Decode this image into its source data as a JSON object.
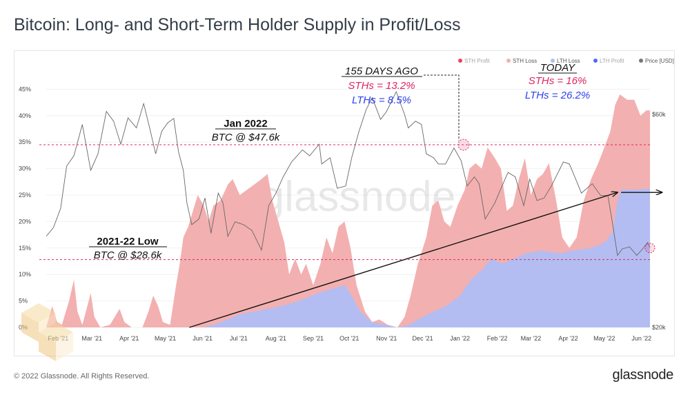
{
  "title": "Bitcoin: Long- and Short-Term Holder Supply in Profit/Loss",
  "footer": {
    "copyright": "© 2022 Glassnode. All Rights Reserved.",
    "brand": "glassnode"
  },
  "watermark": "glassnode",
  "colors": {
    "sth_profit": "#e8485a",
    "sth_loss": "#f3b0b0",
    "lth_loss": "#b3bdf2",
    "lth_profit": "#4a6cf7",
    "price": "#555555",
    "ref_line": "#e0245e",
    "anno_pink": "#e0245e",
    "anno_blue": "#2b3ff0"
  },
  "chart_data": {
    "type": "area",
    "x_range": [
      "2021-01-22",
      "2022-06-08"
    ],
    "x_ticks": [
      "Feb '21",
      "Mar '21",
      "Apr '21",
      "May '21",
      "Jun '21",
      "Jul '21",
      "Aug '21",
      "Sep '21",
      "Oct '21",
      "Nov '21",
      "Dec '21",
      "Jan '22",
      "Feb '22",
      "Mar '22",
      "Apr '22",
      "May '22",
      "Jun '22"
    ],
    "y_left": {
      "ticks": [
        "0%",
        "5%",
        "10%",
        "15%",
        "20%",
        "25%",
        "30%",
        "35%",
        "40%",
        "45%"
      ],
      "range": [
        0,
        47
      ]
    },
    "y_right": {
      "ticks": [
        "$20k",
        "$60k"
      ],
      "scale": "log"
    },
    "legend": {
      "position": "top-right",
      "items": [
        {
          "name": "STH Profit",
          "color": "#e8485a",
          "active": false
        },
        {
          "name": "STH Loss",
          "color": "#f3b0b0",
          "active": true
        },
        {
          "name": "LTH Loss",
          "color": "#b3bdf2",
          "active": true
        },
        {
          "name": "LTH Profit",
          "color": "#4a6cf7",
          "active": false
        },
        {
          "name": "Price [USD]",
          "color": "#777777",
          "active": true
        }
      ]
    },
    "series": [
      {
        "name": "STH Loss",
        "unit": "%",
        "points": [
          [
            "2021-01-22",
            0
          ],
          [
            "2021-01-27",
            4
          ],
          [
            "2021-01-31",
            1
          ],
          [
            "2021-02-04",
            0.5
          ],
          [
            "2021-02-10",
            5
          ],
          [
            "2021-02-14",
            9
          ],
          [
            "2021-02-17",
            3
          ],
          [
            "2021-02-21",
            0.5
          ],
          [
            "2021-02-24",
            3
          ],
          [
            "2021-02-28",
            6.5
          ],
          [
            "2021-03-03",
            2
          ],
          [
            "2021-03-08",
            0
          ],
          [
            "2021-03-16",
            0.5
          ],
          [
            "2021-03-20",
            2
          ],
          [
            "2021-03-24",
            3.5
          ],
          [
            "2021-03-28",
            1
          ],
          [
            "2021-04-03",
            0
          ],
          [
            "2021-04-12",
            0
          ],
          [
            "2021-04-17",
            3
          ],
          [
            "2021-04-21",
            6
          ],
          [
            "2021-04-25",
            4
          ],
          [
            "2021-04-29",
            1
          ],
          [
            "2021-05-05",
            0.5
          ],
          [
            "2021-05-10",
            8
          ],
          [
            "2021-05-13",
            12
          ],
          [
            "2021-05-16",
            17
          ],
          [
            "2021-05-20",
            19
          ],
          [
            "2021-05-24",
            22
          ],
          [
            "2021-05-28",
            25
          ],
          [
            "2021-06-02",
            23
          ],
          [
            "2021-06-06",
            20
          ],
          [
            "2021-06-10",
            23
          ],
          [
            "2021-06-16",
            24
          ],
          [
            "2021-06-22",
            27
          ],
          [
            "2021-06-26",
            28
          ],
          [
            "2021-07-02",
            25
          ],
          [
            "2021-07-08",
            26
          ],
          [
            "2021-07-14",
            27
          ],
          [
            "2021-07-20",
            28
          ],
          [
            "2021-07-25",
            29
          ],
          [
            "2021-07-29",
            24
          ],
          [
            "2021-08-03",
            20
          ],
          [
            "2021-08-08",
            16
          ],
          [
            "2021-08-12",
            10
          ],
          [
            "2021-08-17",
            13
          ],
          [
            "2021-08-22",
            10
          ],
          [
            "2021-08-26",
            12
          ],
          [
            "2021-09-01",
            8
          ],
          [
            "2021-09-07",
            12
          ],
          [
            "2021-09-12",
            17
          ],
          [
            "2021-09-17",
            14
          ],
          [
            "2021-09-22",
            19
          ],
          [
            "2021-09-27",
            20
          ],
          [
            "2021-10-02",
            15
          ],
          [
            "2021-10-07",
            8
          ],
          [
            "2021-10-14",
            3
          ],
          [
            "2021-10-20",
            1
          ],
          [
            "2021-10-26",
            1.5
          ],
          [
            "2021-11-02",
            0.5
          ],
          [
            "2021-11-10",
            0
          ],
          [
            "2021-11-16",
            2
          ],
          [
            "2021-11-21",
            6
          ],
          [
            "2021-11-27",
            12
          ],
          [
            "2021-12-04",
            17
          ],
          [
            "2021-12-09",
            23
          ],
          [
            "2021-12-14",
            24
          ],
          [
            "2021-12-19",
            20
          ],
          [
            "2021-12-24",
            19
          ],
          [
            "2021-12-30",
            23
          ],
          [
            "2022-01-05",
            26
          ],
          [
            "2022-01-09",
            30
          ],
          [
            "2022-01-14",
            31
          ],
          [
            "2022-01-19",
            30
          ],
          [
            "2022-01-24",
            34
          ],
          [
            "2022-01-30",
            32
          ],
          [
            "2022-02-04",
            30
          ],
          [
            "2022-02-09",
            22
          ],
          [
            "2022-02-14",
            23
          ],
          [
            "2022-02-19",
            28
          ],
          [
            "2022-02-24",
            32
          ],
          [
            "2022-03-01",
            25
          ],
          [
            "2022-03-06",
            28
          ],
          [
            "2022-03-11",
            29
          ],
          [
            "2022-03-16",
            31
          ],
          [
            "2022-03-22",
            24
          ],
          [
            "2022-03-27",
            17
          ],
          [
            "2022-04-02",
            15
          ],
          [
            "2022-04-08",
            17
          ],
          [
            "2022-04-14",
            24
          ],
          [
            "2022-04-20",
            28
          ],
          [
            "2022-04-26",
            31
          ],
          [
            "2022-05-01",
            34
          ],
          [
            "2022-05-06",
            37
          ],
          [
            "2022-05-10",
            42
          ],
          [
            "2022-05-14",
            44
          ],
          [
            "2022-05-20",
            43
          ],
          [
            "2022-05-26",
            43
          ],
          [
            "2022-05-31",
            40
          ],
          [
            "2022-06-05",
            41
          ],
          [
            "2022-06-08",
            41
          ]
        ]
      },
      {
        "name": "LTH Loss",
        "unit": "%",
        "points": [
          [
            "2021-01-22",
            0
          ],
          [
            "2021-06-01",
            0
          ],
          [
            "2021-06-10",
            0.5
          ],
          [
            "2021-06-22",
            1.5
          ],
          [
            "2021-07-02",
            2.5
          ],
          [
            "2021-07-14",
            3
          ],
          [
            "2021-07-25",
            3.5
          ],
          [
            "2021-08-05",
            4
          ],
          [
            "2021-08-20",
            5
          ],
          [
            "2021-09-05",
            6.5
          ],
          [
            "2021-09-20",
            7.5
          ],
          [
            "2021-09-27",
            8
          ],
          [
            "2021-10-03",
            6
          ],
          [
            "2021-10-10",
            3
          ],
          [
            "2021-10-20",
            1
          ],
          [
            "2021-11-10",
            0
          ],
          [
            "2021-11-20",
            0.5
          ],
          [
            "2021-12-01",
            2
          ],
          [
            "2021-12-10",
            3
          ],
          [
            "2021-12-20",
            4
          ],
          [
            "2022-01-01",
            6
          ],
          [
            "2022-01-10",
            9
          ],
          [
            "2022-01-20",
            11
          ],
          [
            "2022-01-27",
            13
          ],
          [
            "2022-02-05",
            12
          ],
          [
            "2022-02-15",
            13
          ],
          [
            "2022-02-25",
            14
          ],
          [
            "2022-03-10",
            14.5
          ],
          [
            "2022-03-25",
            14
          ],
          [
            "2022-04-05",
            14.5
          ],
          [
            "2022-04-20",
            15
          ],
          [
            "2022-05-01",
            16
          ],
          [
            "2022-05-08",
            18
          ],
          [
            "2022-05-12",
            24
          ],
          [
            "2022-05-15",
            26
          ],
          [
            "2022-05-25",
            26
          ],
          [
            "2022-06-08",
            26.2
          ]
        ]
      },
      {
        "name": "Price [USD]",
        "unit": "USD",
        "points": [
          [
            "2021-01-22",
            32000
          ],
          [
            "2021-01-28",
            33500
          ],
          [
            "2021-02-03",
            37000
          ],
          [
            "2021-02-08",
            46000
          ],
          [
            "2021-02-14",
            48500
          ],
          [
            "2021-02-21",
            57000
          ],
          [
            "2021-02-28",
            45000
          ],
          [
            "2021-03-06",
            49000
          ],
          [
            "2021-03-13",
            61000
          ],
          [
            "2021-03-19",
            58000
          ],
          [
            "2021-03-25",
            51500
          ],
          [
            "2021-03-31",
            59000
          ],
          [
            "2021-04-07",
            56000
          ],
          [
            "2021-04-13",
            63500
          ],
          [
            "2021-04-18",
            56000
          ],
          [
            "2021-04-23",
            49000
          ],
          [
            "2021-04-28",
            55000
          ],
          [
            "2021-05-03",
            57500
          ],
          [
            "2021-05-08",
            58800
          ],
          [
            "2021-05-12",
            49500
          ],
          [
            "2021-05-16",
            45000
          ],
          [
            "2021-05-19",
            38000
          ],
          [
            "2021-05-23",
            34000
          ],
          [
            "2021-05-29",
            35000
          ],
          [
            "2021-06-03",
            39000
          ],
          [
            "2021-06-08",
            32500
          ],
          [
            "2021-06-14",
            40000
          ],
          [
            "2021-06-18",
            38000
          ],
          [
            "2021-06-22",
            32000
          ],
          [
            "2021-06-28",
            34500
          ],
          [
            "2021-07-05",
            34000
          ],
          [
            "2021-07-12",
            33000
          ],
          [
            "2021-07-20",
            29800
          ],
          [
            "2021-07-26",
            37500
          ],
          [
            "2021-08-01",
            40000
          ],
          [
            "2021-08-07",
            43500
          ],
          [
            "2021-08-14",
            47000
          ],
          [
            "2021-08-23",
            50000
          ],
          [
            "2021-08-29",
            48500
          ],
          [
            "2021-09-06",
            51500
          ],
          [
            "2021-09-08",
            46500
          ],
          [
            "2021-09-15",
            48000
          ],
          [
            "2021-09-21",
            41000
          ],
          [
            "2021-09-28",
            41500
          ],
          [
            "2021-10-03",
            48000
          ],
          [
            "2021-10-09",
            55000
          ],
          [
            "2021-10-15",
            61500
          ],
          [
            "2021-10-20",
            65500
          ],
          [
            "2021-10-27",
            58500
          ],
          [
            "2021-11-01",
            61000
          ],
          [
            "2021-11-09",
            67500
          ],
          [
            "2021-11-16",
            60000
          ],
          [
            "2021-11-19",
            56000
          ],
          [
            "2021-11-25",
            58000
          ],
          [
            "2021-11-30",
            57000
          ],
          [
            "2021-12-04",
            49000
          ],
          [
            "2021-12-10",
            48000
          ],
          [
            "2021-12-14",
            46500
          ],
          [
            "2021-12-20",
            46500
          ],
          [
            "2021-12-27",
            50500
          ],
          [
            "2022-01-02",
            47300
          ],
          [
            "2022-01-07",
            41500
          ],
          [
            "2022-01-13",
            43500
          ],
          [
            "2022-01-17",
            42000
          ],
          [
            "2022-01-22",
            35000
          ],
          [
            "2022-01-30",
            38000
          ],
          [
            "2022-02-05",
            41500
          ],
          [
            "2022-02-10",
            44500
          ],
          [
            "2022-02-16",
            43500
          ],
          [
            "2022-02-23",
            37500
          ],
          [
            "2022-02-28",
            43000
          ],
          [
            "2022-03-06",
            38500
          ],
          [
            "2022-03-12",
            39000
          ],
          [
            "2022-03-18",
            41500
          ],
          [
            "2022-03-28",
            47000
          ],
          [
            "2022-04-02",
            46500
          ],
          [
            "2022-04-08",
            42500
          ],
          [
            "2022-04-12",
            40000
          ],
          [
            "2022-04-21",
            42000
          ],
          [
            "2022-04-28",
            39500
          ],
          [
            "2022-05-04",
            39500
          ],
          [
            "2022-05-08",
            34000
          ],
          [
            "2022-05-12",
            29000
          ],
          [
            "2022-05-16",
            30000
          ],
          [
            "2022-05-22",
            30300
          ],
          [
            "2022-05-28",
            29000
          ],
          [
            "2022-06-02",
            30000
          ],
          [
            "2022-06-06",
            31000
          ],
          [
            "2022-06-08",
            30200
          ]
        ]
      }
    ],
    "reference_lines": [
      {
        "y": 34.5,
        "unit": "%",
        "style": "dashed",
        "color": "#e0245e"
      },
      {
        "y": 12.8,
        "unit": "%",
        "style": "dashed",
        "color": "#e0245e"
      }
    ],
    "trend_arrows": [
      {
        "from": [
          "2021-05-21",
          0
        ],
        "to": [
          "2022-05-12",
          25.5
        ]
      },
      {
        "from": [
          "2022-05-15",
          25.5
        ],
        "to": [
          "2022-06-18",
          25.5
        ]
      }
    ],
    "annotations": {
      "jan2022": {
        "title": "Jan 2022",
        "subtitle": "BTC @ $47.6k"
      },
      "low2122": {
        "title": "2021-22 Low",
        "subtitle": "BTC @ $28.6k"
      },
      "days_ago": {
        "title": "155 DAYS AGO",
        "sth": "STHs = 13.2%",
        "lth": "LTHs = 8.5%",
        "date": "2022-01-04",
        "y": 34.5
      },
      "today": {
        "title": "TODAY",
        "sth": "STHs = 16%",
        "lth": "LTHs = 26.2%",
        "date": "2022-06-08",
        "y": 15
      }
    }
  }
}
